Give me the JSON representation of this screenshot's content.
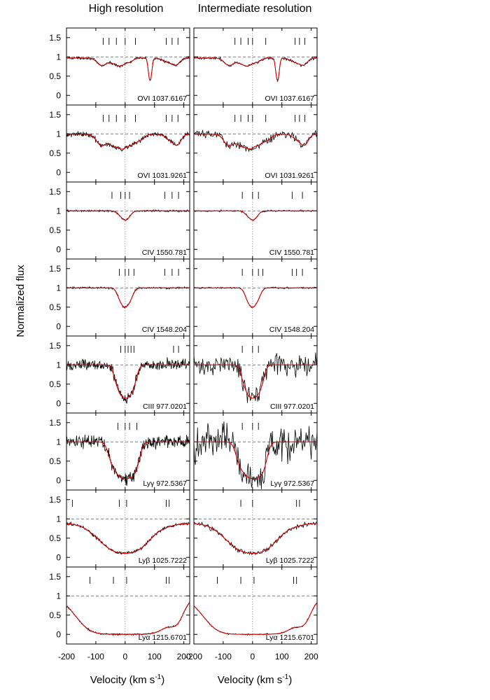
{
  "chart_data": {
    "type": "line",
    "columns": [
      "High resolution",
      "Intermediate resolution"
    ],
    "xlabel": "Velocity (km s",
    "xlabel_sup": "-1",
    "xlabel_close": ")",
    "ylabel": "Normalized flux",
    "xlim": [
      -200,
      220
    ],
    "xticks": [
      -200,
      -100,
      0,
      100,
      200
    ],
    "xtick_labels": [
      "-200",
      "-100",
      "0",
      "100",
      "200"
    ],
    "ylim": [
      -0.25,
      1.75
    ],
    "yticks": [
      0,
      0.5,
      1,
      1.5
    ],
    "ytick_labels": [
      "0",
      "0.5",
      "1",
      "1.5"
    ],
    "continuum_level": 1,
    "colors": {
      "data": "#000000",
      "model": "#e00000",
      "ref": "#555555"
    },
    "panels": [
      {
        "ion": "OVI 1037.6167",
        "components": [
          [
            -75,
            -55,
            -30,
            0,
            35,
            140,
            160,
            180
          ],
          [
            -60,
            -40,
            -15,
            0,
            45,
            145,
            160,
            178
          ]
        ],
        "profile": {
          "base": 0.97,
          "dips": [
            [
              -80,
              0.2,
              15
            ],
            [
              -40,
              0.12,
              15
            ],
            [
              -15,
              0.18,
              14
            ],
            [
              15,
              0.1,
              12
            ],
            [
              85,
              0.6,
              5
            ],
            [
              150,
              0.12,
              18
            ],
            [
              175,
              0.15,
              12
            ]
          ]
        }
      },
      {
        "ion": "OVI 1031.9261",
        "components": [
          [
            -75,
            -55,
            -30,
            0,
            35,
            140,
            160,
            180
          ],
          [
            -60,
            -40,
            -15,
            0,
            45,
            145,
            160,
            178
          ]
        ],
        "profile": {
          "base": 0.99,
          "dips": [
            [
              -80,
              0.3,
              16
            ],
            [
              -40,
              0.28,
              14
            ],
            [
              -10,
              0.35,
              14
            ],
            [
              20,
              0.25,
              14
            ],
            [
              50,
              0.15,
              14
            ],
            [
              155,
              0.15,
              15
            ],
            [
              178,
              0.25,
              12
            ]
          ]
        }
      },
      {
        "ion": "CIV 1550.781",
        "components": [
          [
            -45,
            -15,
            0,
            15,
            135,
            160,
            182
          ],
          [
            -35,
            0,
            20,
            135,
            170
          ]
        ],
        "profile": {
          "base": 1.0,
          "dips": [
            [
              0,
              0.22,
              12
            ],
            [
              -20,
              0.06,
              10
            ],
            [
              15,
              0.05,
              10
            ]
          ]
        }
      },
      {
        "ion": "CIV 1548.204",
        "components": [
          [
            -20,
            0,
            12,
            30,
            135,
            160,
            182
          ],
          [
            -35,
            0,
            20,
            35,
            135,
            150,
            170
          ]
        ],
        "profile": {
          "base": 1.0,
          "dips": [
            [
              0,
              0.48,
              14
            ],
            [
              -18,
              0.12,
              10
            ],
            [
              20,
              0.12,
              10
            ]
          ]
        }
      },
      {
        "ion": "CIII 977.0201",
        "components": [
          [
            -15,
            0,
            10,
            20,
            30,
            165,
            182
          ],
          [
            -35,
            0,
            20
          ]
        ],
        "profile": {
          "base": 1.0,
          "dips": [
            [
              0,
              0.85,
              16
            ],
            [
              -25,
              0.35,
              12
            ],
            [
              25,
              0.45,
              12
            ]
          ]
        }
      },
      {
        "ion": "Lyγ 972.5367",
        "components": [
          [
            -25,
            0,
            15,
            40
          ],
          [
            -35,
            0,
            20
          ]
        ],
        "profile": {
          "base": 1.0,
          "dips": [
            [
              0,
              0.95,
              22
            ],
            [
              -40,
              0.45,
              14
            ],
            [
              30,
              0.55,
              14
            ]
          ]
        }
      },
      {
        "ion": "Lyβ 1025.7222",
        "components": [
          [
            -180,
            -20,
            5,
            140,
            150
          ],
          [
            -40,
            0,
            150,
            160
          ]
        ],
        "profile": {
          "base": 0.88,
          "dips": [
            [
              0,
              0.88,
              55
            ],
            [
              -100,
              0.1,
              40
            ],
            [
              140,
              0.05,
              30
            ]
          ]
        }
      },
      {
        "ion": "Lyα 1215.6701",
        "components": [
          [
            -120,
            -40,
            5,
            140,
            150
          ],
          [
            -120,
            -40,
            5,
            140,
            150
          ]
        ],
        "profile": {
          "base": 1.0,
          "dips": [
            [
              0,
              1.0,
              80
            ],
            [
              170,
              0.55,
              20
            ]
          ]
        }
      }
    ]
  }
}
